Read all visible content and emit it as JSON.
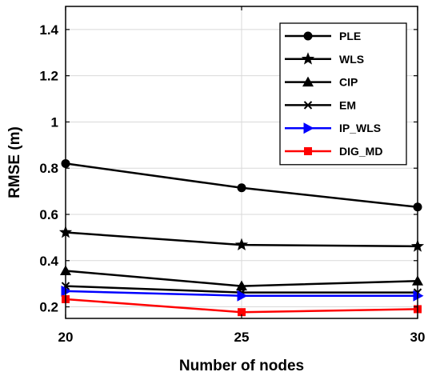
{
  "chart_data": {
    "type": "line",
    "xlabel": "Number of nodes",
    "ylabel": "RMSE (m)",
    "x": [
      20,
      25,
      30
    ],
    "xlim": [
      20,
      30
    ],
    "ylim": [
      0.15,
      1.5
    ],
    "xticks": [
      "20",
      "25",
      "30"
    ],
    "yticks": [
      "0.2",
      "0.4",
      "0.6",
      "0.8",
      "1",
      "1.2",
      "1.4"
    ],
    "grid": true,
    "legend_position": "top-right",
    "series": [
      {
        "name": "PLE",
        "values": [
          0.82,
          0.715,
          0.632
        ],
        "color": "#000000",
        "marker": "circle"
      },
      {
        "name": "WLS",
        "values": [
          0.522,
          0.468,
          0.462
        ],
        "color": "#000000",
        "marker": "star"
      },
      {
        "name": "CIP",
        "values": [
          0.356,
          0.29,
          0.312
        ],
        "color": "#000000",
        "marker": "triangle-up"
      },
      {
        "name": "EM",
        "values": [
          0.29,
          0.262,
          0.262
        ],
        "color": "#000000",
        "marker": "x"
      },
      {
        "name": "IP_WLS",
        "values": [
          0.268,
          0.248,
          0.248
        ],
        "color": "#0000ff",
        "marker": "triangle-right"
      },
      {
        "name": "DIG_MD",
        "values": [
          0.233,
          0.177,
          0.19
        ],
        "color": "#ff0000",
        "marker": "square"
      }
    ]
  }
}
